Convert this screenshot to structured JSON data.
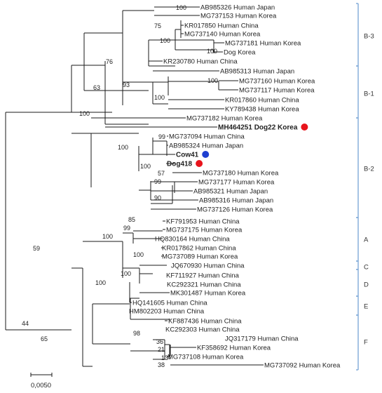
{
  "tree": {
    "leaves": [
      {
        "label": "AB985326 Human Japan"
      },
      {
        "label": "MG737153 Human Korea"
      },
      {
        "label": "KR017850 Human China"
      },
      {
        "label": "MG737140 Human Korea"
      },
      {
        "label": "MG737181 Human Korea"
      },
      {
        "label": "Dog Korea"
      },
      {
        "label": "KR230780 Human China"
      },
      {
        "label": "AB985313 Human Japan"
      },
      {
        "label": "MG737160 Human Korea"
      },
      {
        "label": "MG737117 Human Korea"
      },
      {
        "label": "KR017860 Human China"
      },
      {
        "label": "KY789438 Human Korea"
      },
      {
        "label": "MG737182 Human Korea"
      },
      {
        "label": "MH464251 Dog22 Korea",
        "color": "#e8141c",
        "marker": "#e8141c"
      },
      {
        "label": "MG737094 Human China"
      },
      {
        "label": "AB985324 Human Japan"
      },
      {
        "label": "Cow41",
        "color": "#1f3fd0",
        "marker": "#1f3fd0"
      },
      {
        "label": "Dog418",
        "color": "#e8141c",
        "marker": "#e8141c"
      },
      {
        "label": "MG737180 Human Korea"
      },
      {
        "label": "MG737177 Human Korea"
      },
      {
        "label": "AB985321 Human Japan"
      },
      {
        "label": "AB985316 Human Japan"
      },
      {
        "label": "MG737126 Human Korea"
      },
      {
        "label": "KF791953 Human China"
      },
      {
        "label": "MG737175 Human Korea"
      },
      {
        "label": "HQ830164 Human China"
      },
      {
        "label": "KR017862 Human China"
      },
      {
        "label": "MG737089 Human Korea"
      },
      {
        "label": "JQ670930 Human China"
      },
      {
        "label": "KF711927 Human China"
      },
      {
        "label": "KC292321 Human China"
      },
      {
        "label": "MK301487 Human Korea"
      },
      {
        "label": "HQ141605 Human China"
      },
      {
        "label": "HM802203 Human China"
      },
      {
        "label": "KF887436 Human China"
      },
      {
        "label": "KC292303 Human China"
      },
      {
        "label": "JQ317179 Human China"
      },
      {
        "label": "KF358692 Human Korea"
      },
      {
        "label": "MG737108 Human Korea"
      },
      {
        "label": "MG737092 Human Korea"
      }
    ],
    "bootstrap": [
      "100",
      "75",
      "100",
      "100",
      "76",
      "93",
      "100",
      "100",
      "63",
      "100",
      "99",
      "100",
      "100",
      "57",
      "99",
      "90",
      "85",
      "99",
      "100",
      "100",
      "59",
      "100",
      "100",
      "44",
      "65",
      "98",
      "36",
      "21",
      "13",
      "38"
    ],
    "clades": [
      {
        "label": "B-3"
      },
      {
        "label": "B-1"
      },
      {
        "label": "B-2"
      },
      {
        "label": "A"
      },
      {
        "label": "C"
      },
      {
        "label": "D"
      },
      {
        "label": "E"
      },
      {
        "label": "F"
      }
    ],
    "scale_label": "0,0050",
    "bracket_color": "#6a9bd1"
  }
}
